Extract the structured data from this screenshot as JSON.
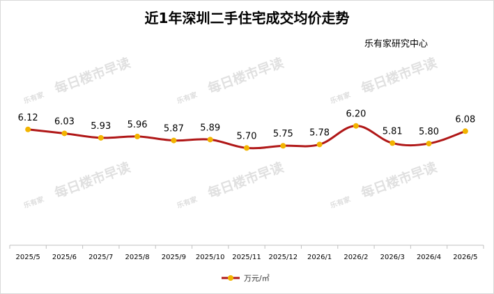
{
  "source_label": "乐有家研究中心",
  "watermark": {
    "logo": "乐有家",
    "text": "每日楼市早读"
  },
  "colors": {
    "line": "#b01717",
    "marker": "#f2b400",
    "axis": "#bfbfbf",
    "watermark": "#c8c8c8"
  },
  "chart_data": {
    "type": "line",
    "title": "近1年深圳二手住宅成交均价走势",
    "categories": [
      "2025/5",
      "2025/6",
      "2025/7",
      "2025/8",
      "2025/9",
      "2025/10",
      "2025/11",
      "2025/12",
      "2026/1",
      "2026/2",
      "2026/3",
      "2026/4",
      "2026/5"
    ],
    "series": [
      {
        "name": "万元/㎡",
        "values": [
          6.12,
          6.03,
          5.93,
          5.96,
          5.87,
          5.89,
          5.7,
          5.75,
          5.78,
          6.2,
          5.81,
          5.8,
          6.08
        ]
      }
    ],
    "ylim": [
      3.5,
      6.4
    ],
    "smooth": true,
    "data_labels": true,
    "grid": false,
    "legend_position": "bottom"
  }
}
